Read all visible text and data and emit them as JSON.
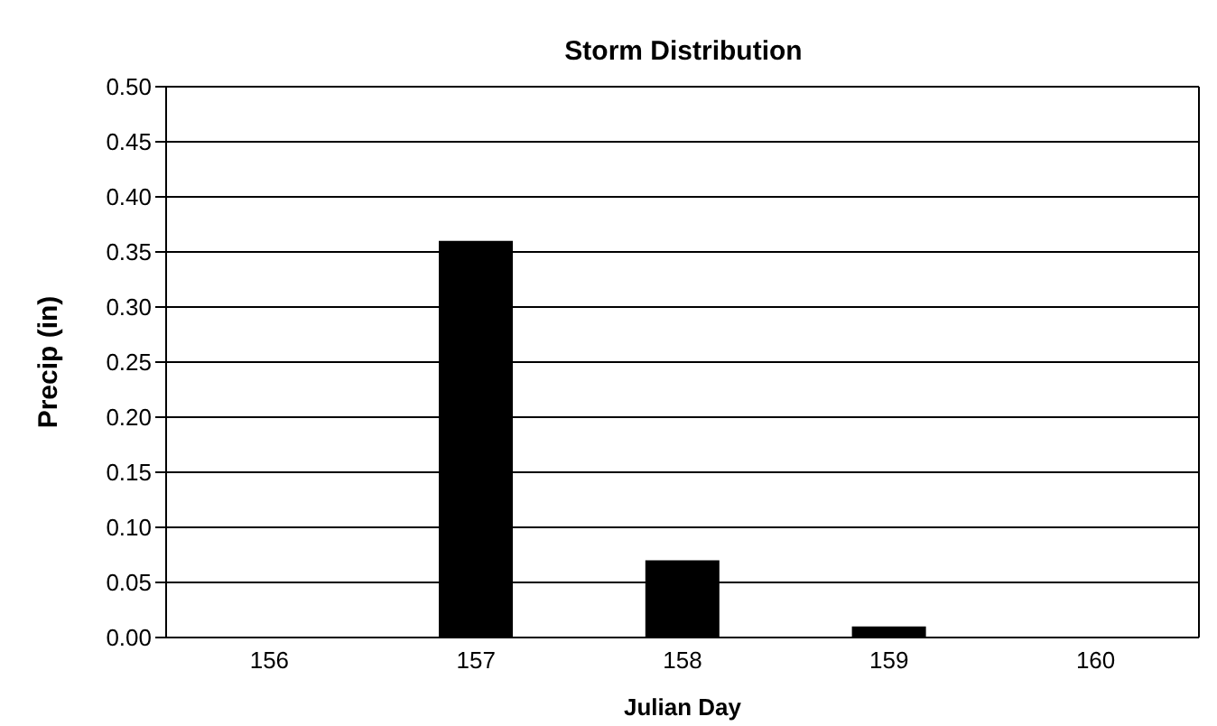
{
  "chart_data": {
    "type": "bar",
    "title": "Storm Distribution",
    "xlabel": "Julian Day",
    "ylabel": "Precip (in)",
    "categories": [
      "156",
      "157",
      "158",
      "159",
      "160"
    ],
    "values": [
      0,
      0.36,
      0.07,
      0.01,
      0
    ],
    "color": "#000000",
    "ylim": [
      0,
      0.5
    ],
    "yticks": [
      {
        "value": 0,
        "label": "0.00"
      },
      {
        "value": 0.05,
        "label": "0.05"
      },
      {
        "value": 0.1,
        "label": "0.10"
      },
      {
        "value": 0.15,
        "label": "0.15"
      },
      {
        "value": 0.2,
        "label": "0.20"
      },
      {
        "value": 0.25,
        "label": "0.25"
      },
      {
        "value": 0.3,
        "label": "0.30"
      },
      {
        "value": 0.35,
        "label": "0.35"
      },
      {
        "value": 0.4,
        "label": "0.40"
      },
      {
        "value": 0.45,
        "label": "0.45"
      },
      {
        "value": 0.5,
        "label": "0.50"
      }
    ],
    "grid": "y",
    "legend": false
  }
}
